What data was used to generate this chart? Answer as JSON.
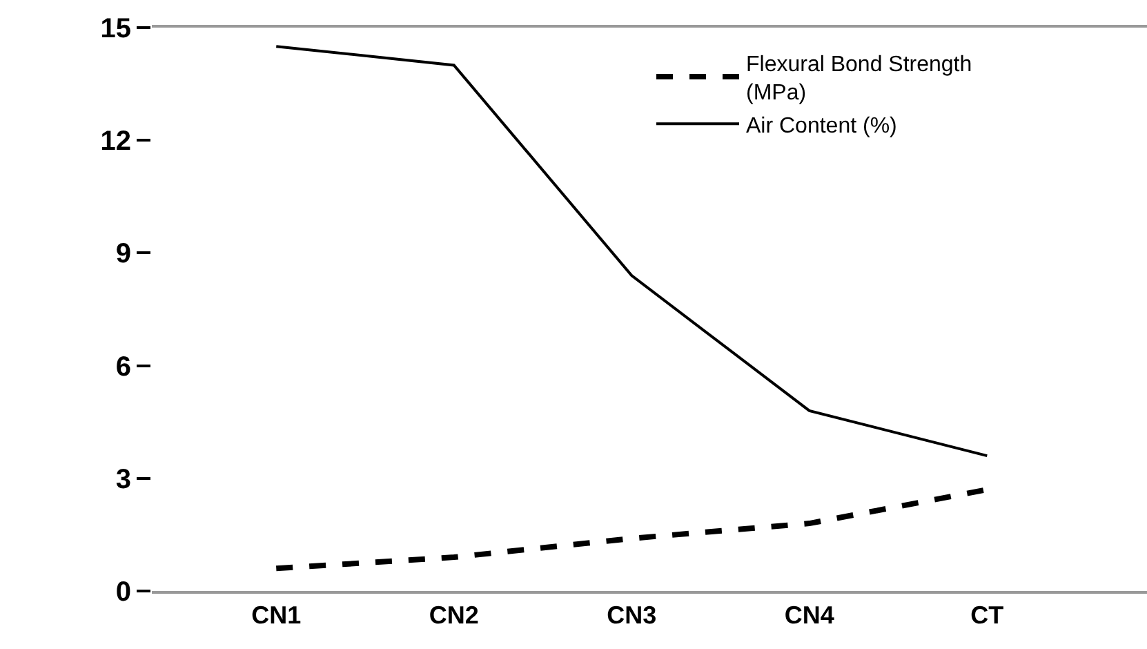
{
  "chart_data": {
    "type": "line",
    "categories": [
      "CN1",
      "CN2",
      "CN3",
      "CN4",
      "CT"
    ],
    "series": [
      {
        "name": "Flexural Bond Strength (MPa)",
        "color": "#000000",
        "line_style": "dashed",
        "values": [
          0.6,
          0.9,
          1.4,
          1.8,
          2.7
        ]
      },
      {
        "name": "Air Content (%)",
        "color": "#000000",
        "line_style": "solid",
        "values": [
          14.5,
          14.0,
          8.4,
          4.8,
          3.6
        ]
      }
    ],
    "ylim": [
      0,
      15
    ],
    "yticks": [
      0,
      3,
      6,
      9,
      12,
      15
    ],
    "grid": false,
    "legend": "top right",
    "marker": "none"
  }
}
